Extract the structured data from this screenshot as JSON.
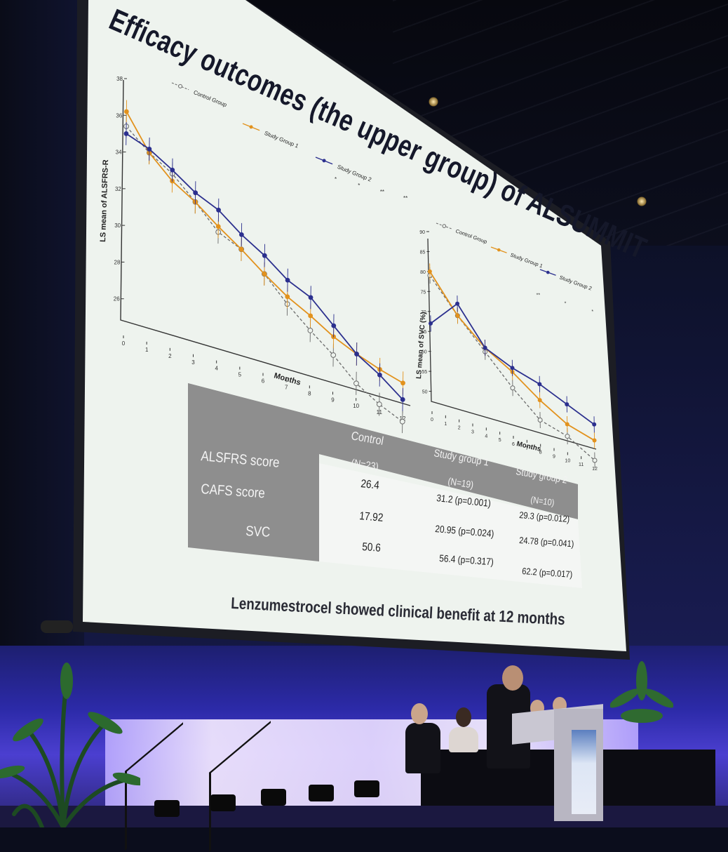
{
  "slide": {
    "title": "Efficacy outcomes (the upper group) of ALSUMMIT",
    "footer": "Lenzumestrocel showed clinical benefit at 12 months"
  },
  "chart_data": [
    {
      "type": "line",
      "ylabel": "LS mean of ALSFRS-R",
      "xlabel": "Months",
      "xlim": [
        0,
        12
      ],
      "ylim": [
        24,
        38
      ],
      "x": [
        0,
        1,
        2,
        3,
        4,
        5,
        6,
        7,
        8,
        9,
        10,
        11,
        12
      ],
      "yticks": [
        26,
        28,
        30,
        32,
        34,
        36,
        38
      ],
      "significance": [
        {
          "x": 9,
          "label": "*"
        },
        {
          "x": 10,
          "label": "*"
        },
        {
          "x": 11,
          "label": "**"
        },
        {
          "x": 12,
          "label": "**"
        }
      ],
      "series": [
        {
          "name": "Control Group",
          "color": "#6b6b6b",
          "style": "dashed-open-circle",
          "values": [
            35.4,
            34.3,
            33.5,
            32.3,
            31.0,
            30.4,
            29.4,
            28.1,
            27.0,
            26.0,
            24.8,
            24.0,
            23.4
          ]
        },
        {
          "name": "Study Group 1",
          "color": "#e2921d",
          "style": "solid",
          "values": [
            36.2,
            34.3,
            33.1,
            32.3,
            31.3,
            30.4,
            29.4,
            28.5,
            27.8,
            27.0,
            26.4,
            25.9,
            25.5
          ]
        },
        {
          "name": "Study Group 2",
          "color": "#2b2f8e",
          "style": "solid",
          "values": [
            35.0,
            34.5,
            33.7,
            32.8,
            32.2,
            31.2,
            30.4,
            29.4,
            28.8,
            27.6,
            26.4,
            25.6,
            24.6
          ]
        }
      ]
    },
    {
      "type": "line",
      "ylabel": "LS mean of SVC (%)",
      "xlabel": "Months",
      "xlim": [
        0,
        12
      ],
      "ylim": [
        45,
        90
      ],
      "x": [
        0,
        1,
        2,
        3,
        4,
        5,
        6,
        7,
        8,
        9,
        10,
        11,
        12
      ],
      "yticks": [
        50,
        55,
        60,
        65,
        70,
        75,
        80,
        85,
        90
      ],
      "significance": [
        {
          "x": 8,
          "label": "**"
        },
        {
          "x": 10,
          "label": "*"
        },
        {
          "x": 12,
          "label": "*"
        }
      ],
      "series": [
        {
          "name": "Control Group",
          "color": "#6b6b6b",
          "style": "dashed-open-circle",
          "values": [
            79,
            null,
            71,
            null,
            64,
            null,
            57,
            null,
            51,
            null,
            49,
            null,
            45
          ]
        },
        {
          "name": "Study Group 1",
          "color": "#e2921d",
          "style": "solid",
          "values": [
            80,
            null,
            71,
            null,
            65,
            null,
            61,
            null,
            56,
            null,
            52,
            null,
            50
          ]
        },
        {
          "name": "Study Group 2",
          "color": "#2b2f8e",
          "style": "solid",
          "values": [
            67,
            null,
            74,
            null,
            65,
            null,
            62,
            null,
            60,
            null,
            57,
            null,
            54
          ]
        }
      ]
    }
  ],
  "results_table": {
    "columns": [
      {
        "name": "Control",
        "n": "(N=23)"
      },
      {
        "name": "Study group 1",
        "n": "(N=19)"
      },
      {
        "name": "Study group 2",
        "n": "(N=10)"
      }
    ],
    "rows": [
      {
        "label": "ALSFRS score",
        "values": [
          "26.4",
          "31.2 (p=0.001)",
          "29.3 (p=0.012)"
        ]
      },
      {
        "label": "CAFS score",
        "values": [
          "17.92",
          "20.95 (p=0.024)",
          "24.78 (p=0.041)"
        ]
      },
      {
        "label": "SVC",
        "values": [
          "50.6",
          "56.4 (p=0.317)",
          "62.2 (p=0.017)"
        ]
      }
    ]
  },
  "colors": {
    "slide_bg": "#eef3ee",
    "table_header": "#8e8e8e",
    "control": "#6b6b6b",
    "study1": "#e2921d",
    "study2": "#2b2f8e",
    "stage_purple": "#4b3fd0"
  }
}
